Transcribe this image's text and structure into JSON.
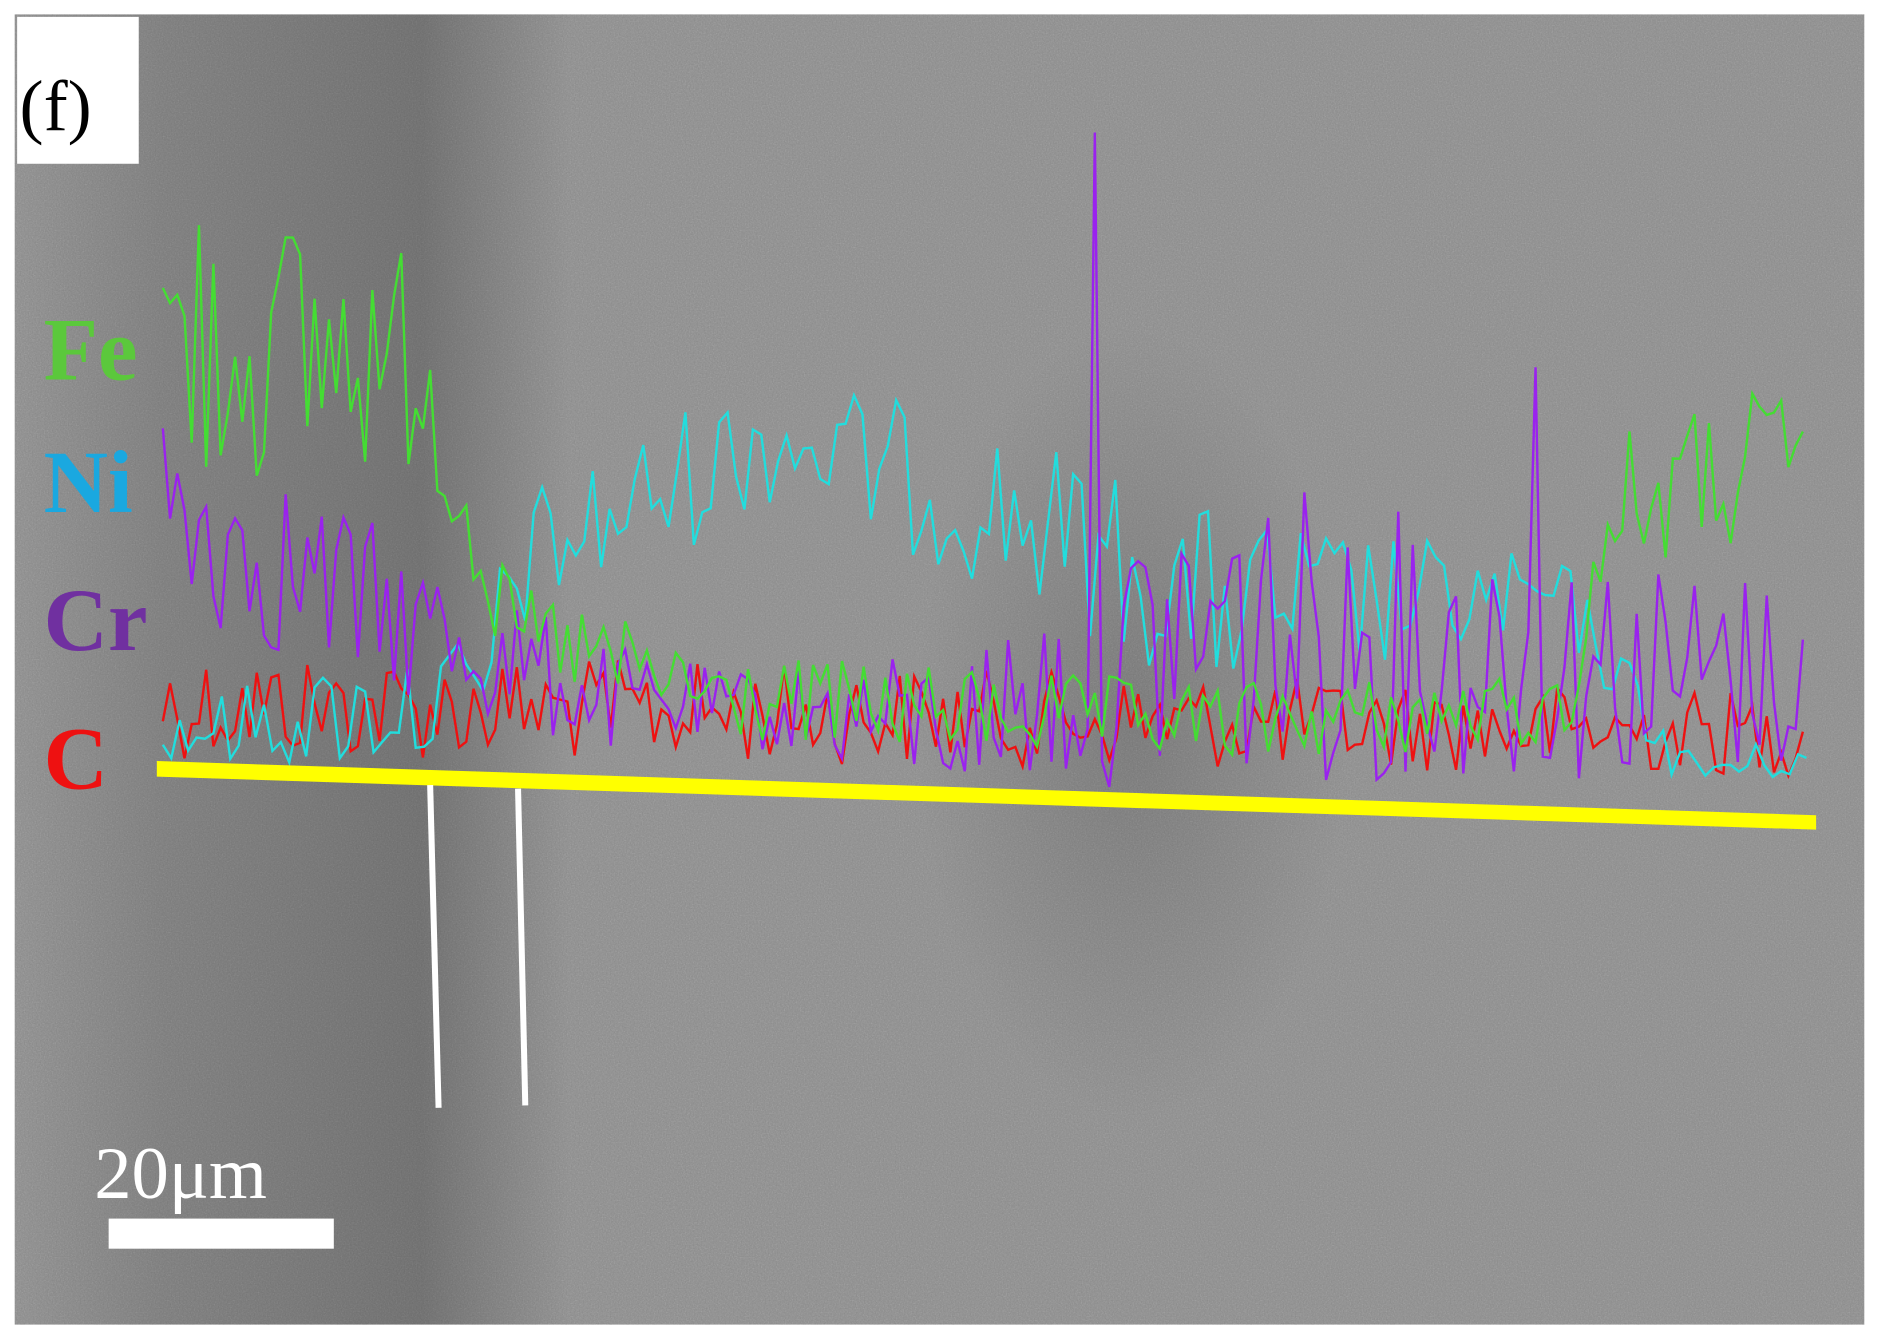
{
  "label": "(f)",
  "elements": [
    "Fe",
    "Ni",
    "Cr",
    "C"
  ],
  "scale_bar": "20μm"
}
